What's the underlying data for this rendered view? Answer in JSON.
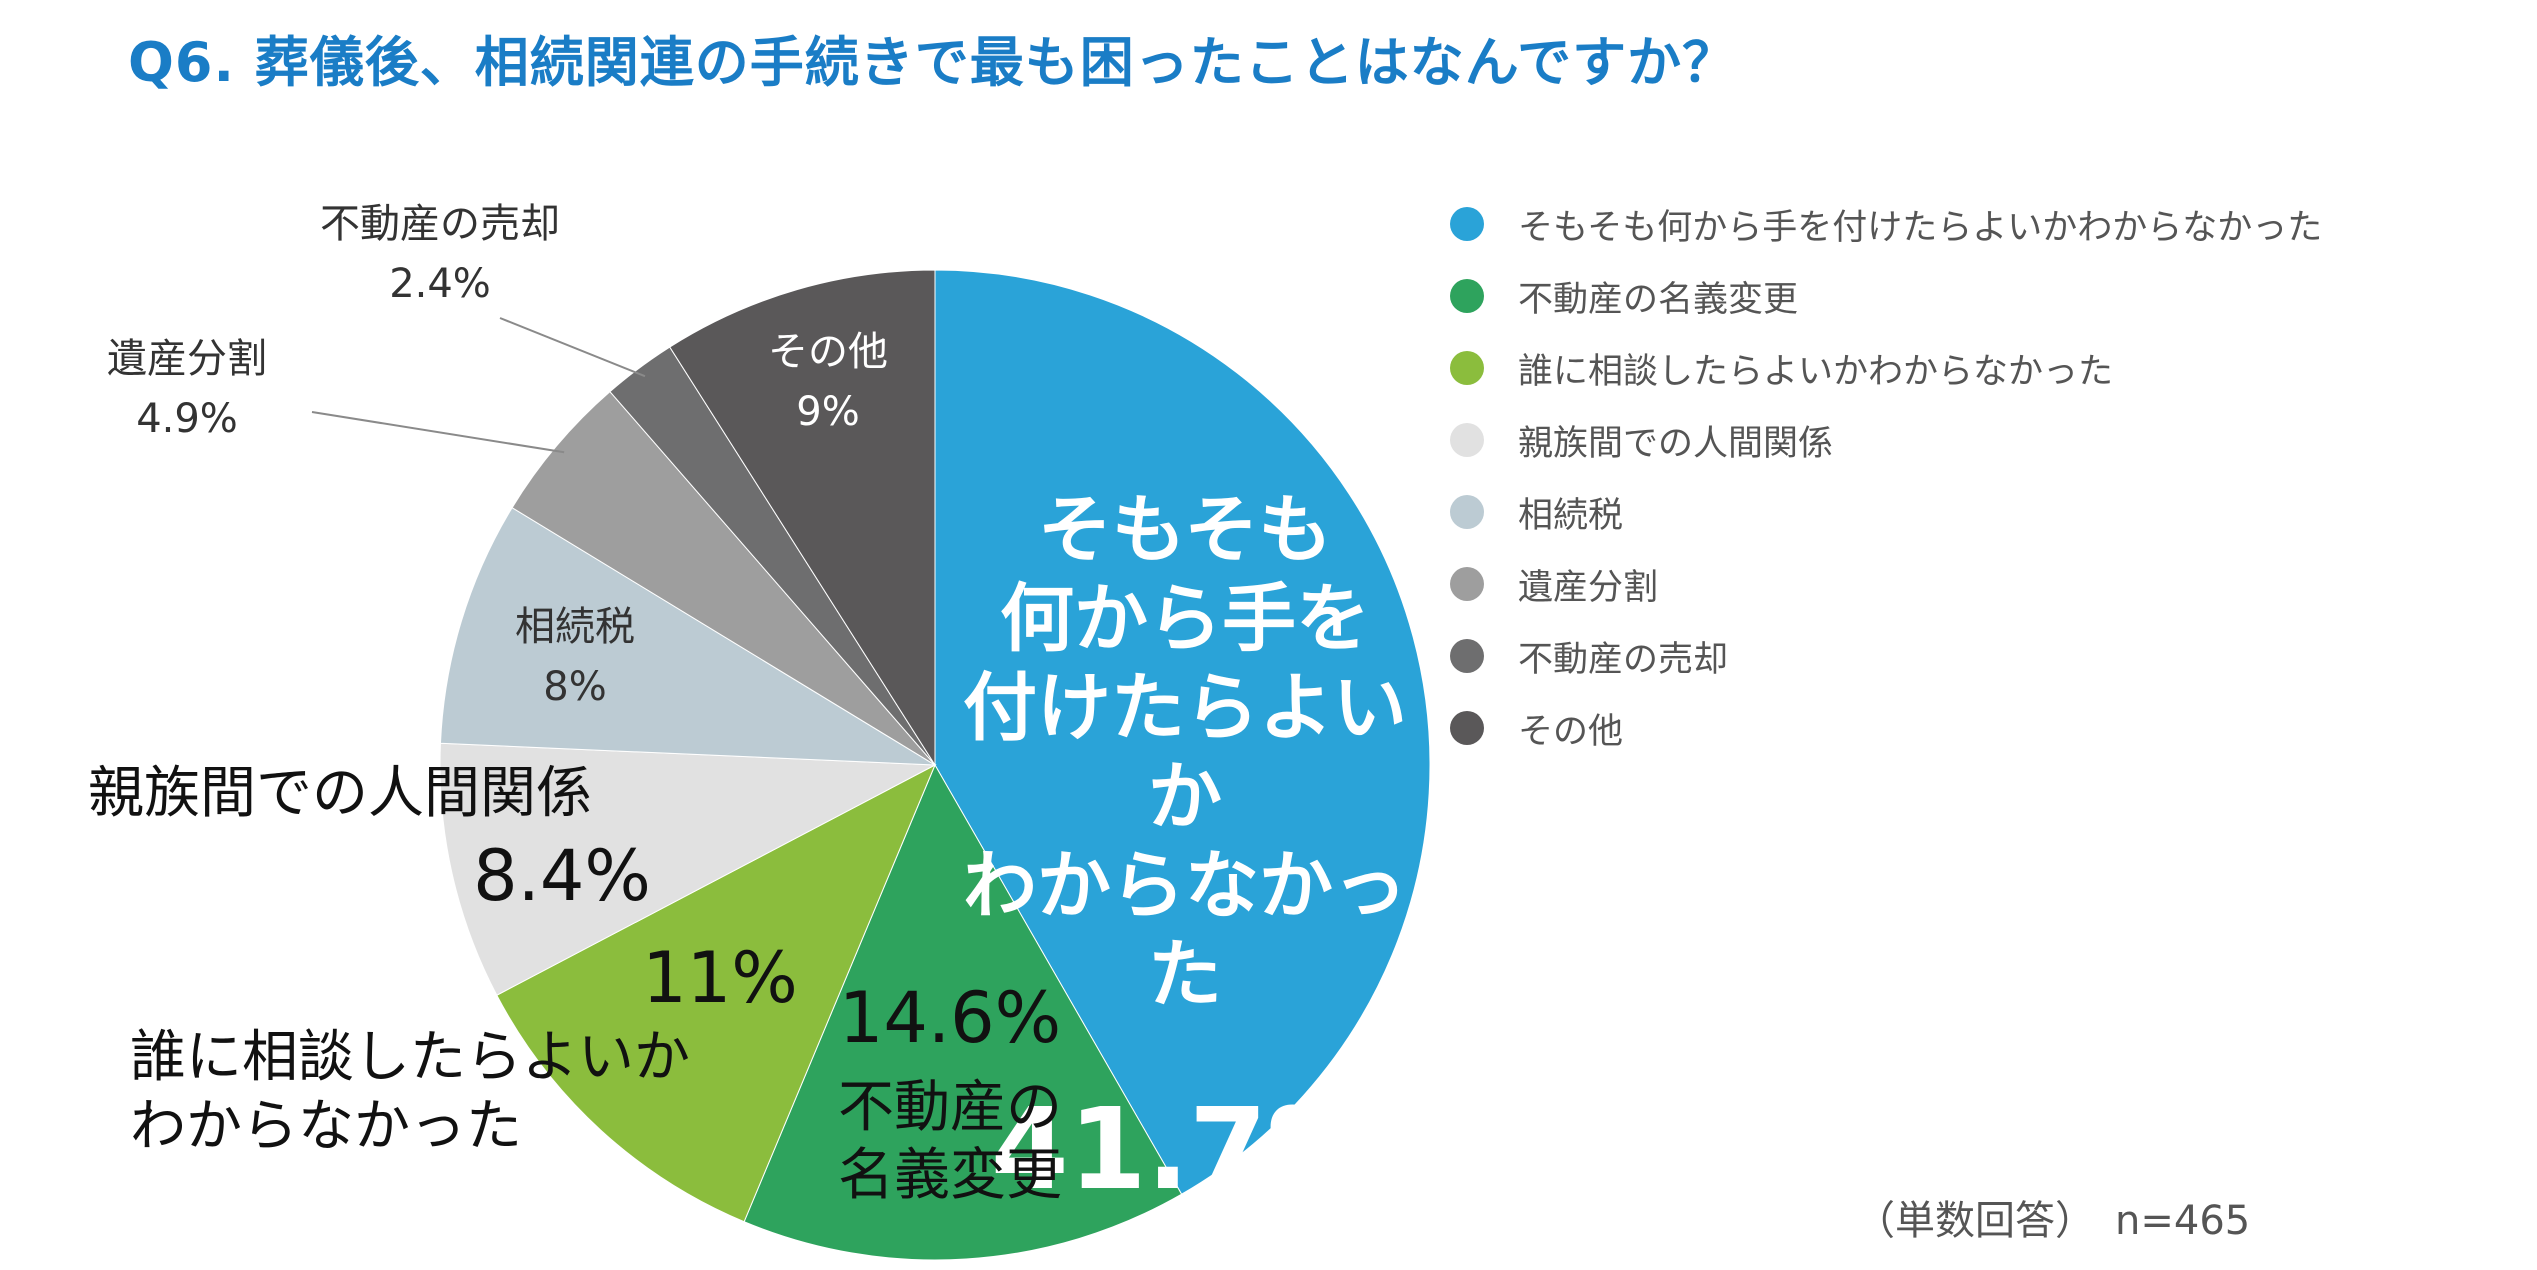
{
  "title": "Q6. 葬儀後、相続関連の手続きで最も困ったことはなんですか？",
  "note": {
    "answer_type": "（単数回答）",
    "sample_size": "n=465"
  },
  "colors": {
    "title": "#1a7dc6",
    "slices": [
      "#2aa3d8",
      "#2ea35d",
      "#8bbd3d",
      "#e1e1e1",
      "#bccbd3",
      "#9e9e9e",
      "#6e6e6f",
      "#5a5859"
    ]
  },
  "chart_data": {
    "type": "pie",
    "title": "Q6. 葬儀後、相続関連の手続きで最も困ったことはなんですか？",
    "start_angle_deg": 0,
    "direction": "clockwise",
    "legend_position": "right",
    "slices": [
      {
        "label": "そもそも何から手を付けたらよいかわからなかった",
        "label_lines": [
          "そもそも",
          "何から手を",
          "付けたらよい",
          "か",
          "わからなかっ",
          "た"
        ],
        "value": 41.7,
        "value_label": "41.7%",
        "color": "#2aa3d8"
      },
      {
        "label": "不動産の名義変更",
        "label_lines": [
          "不動産の",
          "名義変更"
        ],
        "value": 14.6,
        "value_label": "14.6%",
        "color": "#2ea35d"
      },
      {
        "label": "誰に相談したらよいかわからなかった",
        "label_lines": [
          "誰に相談したらよいか",
          "わからなかった"
        ],
        "value": 11,
        "value_label": "11%",
        "color": "#8bbd3d"
      },
      {
        "label": "親族間での人間関係",
        "label_lines": [
          "親族間での人間関係"
        ],
        "value": 8.4,
        "value_label": "8.4%",
        "color": "#e1e1e1"
      },
      {
        "label": "相続税",
        "label_lines": [
          "相続税"
        ],
        "value": 8,
        "value_label": "8%",
        "color": "#bccbd3"
      },
      {
        "label": "遺産分割",
        "label_lines": [
          "遺産分割"
        ],
        "value": 4.9,
        "value_label": "4.9%",
        "color": "#9e9e9e"
      },
      {
        "label": "不動産の売却",
        "label_lines": [
          "不動産の売却"
        ],
        "value": 2.4,
        "value_label": "2.4%",
        "color": "#6e6e6f"
      },
      {
        "label": "その他",
        "label_lines": [
          "その他"
        ],
        "value": 9,
        "value_label": "9%",
        "color": "#5a5859"
      }
    ]
  }
}
